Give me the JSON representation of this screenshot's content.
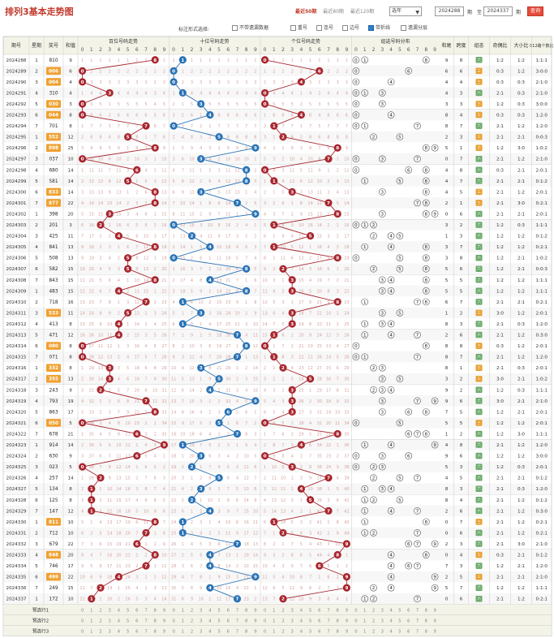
{
  "header": {
    "title": "排列3基本走势图",
    "range_links": [
      "最近50期",
      "最近80期",
      "最近120期"
    ],
    "active_range": 0,
    "year_select": "选年",
    "from_issue": "2024288",
    "to_issue": "2024337",
    "label_issue": "期",
    "label_to": "至",
    "go_label": "查询"
  },
  "options": {
    "label": "标注形式选择:",
    "items": [
      {
        "label": "不带遗漏数据",
        "checked": false
      },
      {
        "label": "重号",
        "checked": false
      },
      {
        "label": "连号",
        "checked": false
      },
      {
        "label": "边号",
        "checked": false
      },
      {
        "label": "带折线",
        "checked": true
      },
      {
        "label": "遗漏分层",
        "checked": false
      }
    ]
  },
  "table": {
    "columns": {
      "issue": "期号",
      "weekday": "星期",
      "number": "奖号",
      "sum": "和值",
      "hundreds": "百位号码走势",
      "tens": "十位号码走势",
      "units": "个位号码走势",
      "group": "组选号码分布",
      "span_sum": "和尾",
      "span": "跨度",
      "group_type": "组态",
      "odd_even": "奇偶比",
      "big_small": "大小比",
      "ratio012": "012路个数比"
    },
    "digits": [
      "0",
      "1",
      "2",
      "3",
      "4",
      "5",
      "6",
      "7",
      "8",
      "9"
    ],
    "group_type_label": "组六",
    "group_type_label_3": "组三",
    "forecast_rows": [
      "预选行1",
      "预选行2",
      "预选行3"
    ]
  },
  "rows": [
    {
      "issue": "2024288",
      "wd": "1",
      "num": "810",
      "sum": "9"
    },
    {
      "issue": "2024289",
      "wd": "2",
      "num": "006",
      "sum": "6"
    },
    {
      "issue": "2024290",
      "wd": "3",
      "num": "004",
      "sum": "4"
    },
    {
      "issue": "2024291",
      "wd": "4",
      "num": "310",
      "sum": "4"
    },
    {
      "issue": "2024292",
      "wd": "5",
      "num": "030",
      "sum": "3"
    },
    {
      "issue": "2024293",
      "wd": "6",
      "num": "044",
      "sum": "8"
    },
    {
      "issue": "2024294",
      "wd": "7",
      "num": "701",
      "sum": "8"
    },
    {
      "issue": "2024295",
      "wd": "1",
      "num": "552",
      "sum": "12"
    },
    {
      "issue": "2024296",
      "wd": "2",
      "num": "898",
      "sum": "25"
    },
    {
      "issue": "2024297",
      "wd": "3",
      "num": "037",
      "sum": "10"
    },
    {
      "issue": "2024298",
      "wd": "4",
      "num": "680",
      "sum": "14"
    },
    {
      "issue": "2024299",
      "wd": "5",
      "num": "581",
      "sum": "14"
    },
    {
      "issue": "2024300",
      "wd": "6",
      "num": "833",
      "sum": "14"
    },
    {
      "issue": "2024301",
      "wd": "7",
      "num": "877",
      "sum": "22"
    },
    {
      "issue": "2024302",
      "wd": "1",
      "num": "398",
      "sum": "20"
    },
    {
      "issue": "2024303",
      "wd": "2",
      "num": "201",
      "sum": "3"
    },
    {
      "issue": "2024304",
      "wd": "3",
      "num": "425",
      "sum": "11"
    },
    {
      "issue": "2024305",
      "wd": "4",
      "num": "841",
      "sum": "13"
    },
    {
      "issue": "2024306",
      "wd": "5",
      "num": "508",
      "sum": "13"
    },
    {
      "issue": "2024307",
      "wd": "6",
      "num": "582",
      "sum": "15"
    },
    {
      "issue": "2024308",
      "wd": "7",
      "num": "843",
      "sum": "15"
    },
    {
      "issue": "2024309",
      "wd": "1",
      "num": "483",
      "sum": "15"
    },
    {
      "issue": "2024310",
      "wd": "2",
      "num": "718",
      "sum": "16"
    },
    {
      "issue": "2024311",
      "wd": "3",
      "num": "533",
      "sum": "11"
    },
    {
      "issue": "2024312",
      "wd": "4",
      "num": "413",
      "sum": "8"
    },
    {
      "issue": "2024313",
      "wd": "5",
      "num": "471",
      "sum": "12"
    },
    {
      "issue": "2024314",
      "wd": "6",
      "num": "080",
      "sum": "8"
    },
    {
      "issue": "2024315",
      "wd": "7",
      "num": "071",
      "sum": "8"
    },
    {
      "issue": "2024316",
      "wd": "1",
      "num": "332",
      "sum": "8"
    },
    {
      "issue": "2024317",
      "wd": "2",
      "num": "355",
      "sum": "13"
    },
    {
      "issue": "2024318",
      "wd": "3",
      "num": "243",
      "sum": "9"
    },
    {
      "issue": "2024319",
      "wd": "4",
      "num": "793",
      "sum": "19"
    },
    {
      "issue": "2024320",
      "wd": "5",
      "num": "863",
      "sum": "17"
    },
    {
      "issue": "2024321",
      "wd": "6",
      "num": "050",
      "sum": "5"
    },
    {
      "issue": "2024322",
      "wd": "7",
      "num": "678",
      "sum": "21"
    },
    {
      "issue": "2024323",
      "wd": "1",
      "num": "914",
      "sum": "14"
    },
    {
      "issue": "2024324",
      "wd": "2",
      "num": "630",
      "sum": "9"
    },
    {
      "issue": "2024325",
      "wd": "3",
      "num": "023",
      "sum": "5"
    },
    {
      "issue": "2024326",
      "wd": "4",
      "num": "257",
      "sum": "14"
    },
    {
      "issue": "2024327",
      "wd": "5",
      "num": "134",
      "sum": "8"
    },
    {
      "issue": "2024328",
      "wd": "6",
      "num": "125",
      "sum": "8"
    },
    {
      "issue": "2024329",
      "wd": "7",
      "num": "147",
      "sum": "12"
    },
    {
      "issue": "2024330",
      "wd": "1",
      "num": "811",
      "sum": "10"
    },
    {
      "issue": "2024331",
      "wd": "2",
      "num": "712",
      "sum": "10"
    },
    {
      "issue": "2024332",
      "wd": "3",
      "num": "679",
      "sum": "22"
    },
    {
      "issue": "2024333",
      "wd": "4",
      "num": "848",
      "sum": "20"
    },
    {
      "issue": "2024334",
      "wd": "5",
      "num": "746",
      "sum": "17"
    },
    {
      "issue": "2024335",
      "wd": "6",
      "num": "499",
      "sum": "22"
    },
    {
      "issue": "2024336",
      "wd": "7",
      "num": "249",
      "sum": "15"
    },
    {
      "issue": "2024337",
      "wd": "1",
      "num": "172",
      "sum": "10"
    }
  ],
  "colors": {
    "hundreds_ball": "#a8262e",
    "tens_ball": "#2a72b5",
    "units_ball": "#a8262e",
    "header_bg": "#f3f3e8",
    "row_alt": "#f7f7f7",
    "grid_line": "#dddddd",
    "group3_hl": "#f0a030",
    "miss_text": "#d9a0a0"
  }
}
